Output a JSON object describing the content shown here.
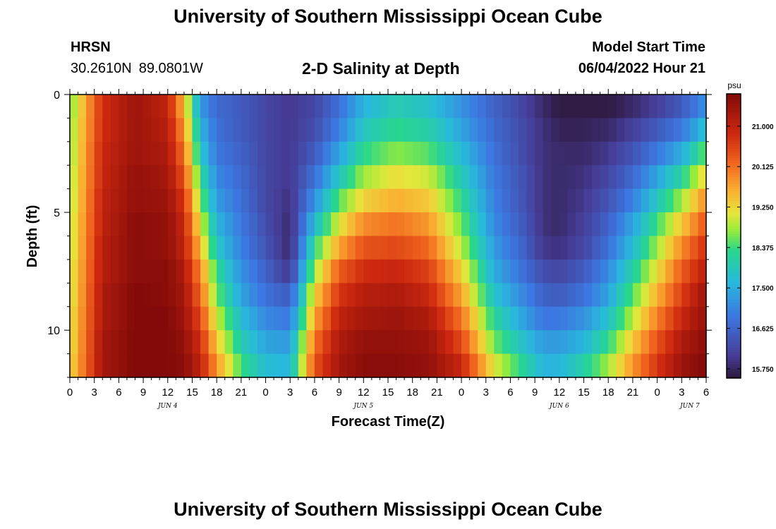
{
  "header": {
    "title": "University of Southern Mississippi Ocean Cube",
    "station": "HRSN",
    "lat": "30.2610N",
    "lon": "89.0801W",
    "subtitle": "2-D Salinity at Depth",
    "model_start_label": "Model Start Time",
    "model_start_value": "06/04/2022 Hour 21"
  },
  "footer": {
    "title": "University of Southern Mississippi Ocean Cube"
  },
  "chart_data": {
    "type": "heatmap",
    "title": "2-D Salinity at Depth",
    "xlabel": "Forecast Time(Z)",
    "ylabel": "Depth (ft)",
    "x_start_hour": 0,
    "x_end_hour": 78,
    "x_tick_labels": [
      "0",
      "3",
      "6",
      "9",
      "12",
      "15",
      "18",
      "21",
      "0",
      "3",
      "6",
      "9",
      "12",
      "15",
      "18",
      "21",
      "0",
      "3",
      "6",
      "9",
      "12",
      "15",
      "18",
      "21",
      "0",
      "3",
      "6"
    ],
    "date_labels": [
      {
        "hour": 12,
        "label": "JUN 4"
      },
      {
        "hour": 36,
        "label": "JUN 5"
      },
      {
        "hour": 60,
        "label": "JUN 6"
      },
      {
        "hour": 76,
        "label": "JUN 7"
      }
    ],
    "y_ticks": [
      0,
      5,
      10
    ],
    "ylim": [
      0,
      12
    ],
    "colorbar": {
      "unit": "psu",
      "ticks": [
        "21.000",
        "20.125",
        "19.250",
        "18.375",
        "17.500",
        "16.625",
        "15.750"
      ],
      "range": [
        15.55,
        21.7
      ]
    },
    "depth_ft": [
      0.5,
      1.5,
      2.5,
      3.5,
      4.5,
      5.5,
      6.5,
      7.5,
      8.5,
      9.5,
      10.5,
      11.5
    ],
    "time_hours": [
      0,
      4,
      8,
      12,
      14,
      16,
      18,
      21,
      24,
      27,
      30,
      33,
      36,
      40,
      44,
      48,
      52,
      56,
      58,
      60,
      63,
      66,
      69,
      72,
      75,
      78
    ],
    "salinity_psu": [
      [
        18.6,
        20.8,
        21.4,
        21.0,
        19.5,
        17.3,
        16.7,
        16.5,
        16.2,
        16.0,
        16.2,
        16.8,
        17.6,
        18.0,
        17.8,
        17.2,
        16.6,
        16.1,
        15.8,
        15.6,
        15.6,
        15.6,
        15.8,
        16.1,
        16.5,
        17.2
      ],
      [
        18.7,
        20.8,
        21.4,
        21.1,
        19.8,
        17.6,
        16.8,
        16.5,
        16.2,
        16.0,
        16.3,
        17.0,
        17.9,
        18.3,
        18.1,
        17.4,
        16.7,
        16.2,
        15.9,
        15.7,
        15.7,
        15.8,
        16.1,
        16.5,
        16.9,
        17.8
      ],
      [
        18.7,
        20.9,
        21.4,
        21.2,
        20.1,
        17.9,
        16.9,
        16.6,
        16.2,
        16.0,
        16.5,
        17.4,
        18.3,
        18.7,
        18.5,
        17.7,
        16.8,
        16.2,
        15.9,
        15.8,
        15.8,
        16.0,
        16.4,
        16.9,
        17.5,
        18.6
      ],
      [
        18.8,
        20.9,
        21.5,
        21.3,
        20.4,
        18.3,
        17.1,
        16.7,
        16.2,
        16.0,
        16.8,
        17.9,
        18.8,
        19.2,
        19.0,
        18.0,
        16.9,
        16.3,
        15.9,
        15.8,
        15.9,
        16.2,
        16.7,
        17.4,
        18.2,
        19.3
      ],
      [
        18.8,
        21.0,
        21.5,
        21.4,
        20.7,
        18.7,
        17.3,
        16.8,
        16.2,
        15.9,
        17.2,
        18.5,
        19.3,
        19.6,
        19.4,
        18.3,
        17.0,
        16.3,
        15.9,
        15.8,
        16.0,
        16.4,
        17.0,
        17.9,
        18.8,
        19.9
      ],
      [
        18.9,
        21.0,
        21.6,
        21.5,
        20.9,
        19.1,
        17.6,
        16.9,
        16.3,
        15.8,
        17.7,
        19.1,
        19.9,
        20.1,
        19.8,
        18.6,
        17.1,
        16.4,
        15.9,
        15.8,
        16.1,
        16.6,
        17.4,
        18.4,
        19.4,
        20.4
      ],
      [
        18.9,
        21.1,
        21.6,
        21.5,
        21.0,
        19.5,
        17.9,
        17.0,
        16.4,
        15.8,
        18.3,
        19.7,
        20.4,
        20.5,
        20.2,
        18.9,
        17.3,
        16.5,
        16.0,
        15.9,
        16.2,
        16.8,
        17.7,
        18.8,
        19.9,
        20.8
      ],
      [
        19.0,
        21.1,
        21.6,
        21.6,
        21.2,
        19.9,
        18.3,
        17.2,
        16.6,
        16.0,
        18.8,
        20.3,
        20.8,
        20.9,
        20.6,
        19.3,
        17.5,
        16.7,
        16.3,
        16.2,
        16.5,
        17.1,
        18.1,
        19.2,
        20.3,
        21.1
      ],
      [
        19.0,
        21.2,
        21.7,
        21.6,
        21.3,
        20.2,
        18.6,
        17.4,
        16.8,
        16.5,
        19.3,
        20.7,
        21.1,
        21.2,
        20.9,
        19.7,
        17.8,
        17.0,
        16.6,
        16.5,
        16.8,
        17.4,
        18.5,
        19.6,
        20.6,
        21.4
      ],
      [
        19.1,
        21.2,
        21.7,
        21.7,
        21.4,
        20.5,
        19.0,
        17.7,
        17.1,
        16.9,
        19.7,
        21.0,
        21.3,
        21.4,
        21.2,
        20.1,
        18.2,
        17.3,
        16.9,
        16.9,
        17.2,
        17.8,
        18.9,
        20.0,
        20.9,
        21.5
      ],
      [
        19.1,
        21.3,
        21.7,
        21.7,
        21.5,
        20.8,
        19.4,
        18.0,
        17.4,
        17.3,
        20.1,
        21.2,
        21.5,
        21.5,
        21.4,
        20.5,
        18.6,
        17.7,
        17.3,
        17.3,
        17.6,
        18.3,
        19.4,
        20.4,
        21.2,
        21.6
      ],
      [
        19.2,
        21.3,
        21.7,
        21.7,
        21.6,
        21.0,
        19.8,
        18.4,
        17.7,
        17.6,
        20.4,
        21.3,
        21.6,
        21.6,
        21.5,
        20.9,
        19.1,
        18.1,
        17.6,
        17.6,
        18.1,
        18.8,
        19.8,
        20.7,
        21.4,
        21.7
      ]
    ]
  }
}
